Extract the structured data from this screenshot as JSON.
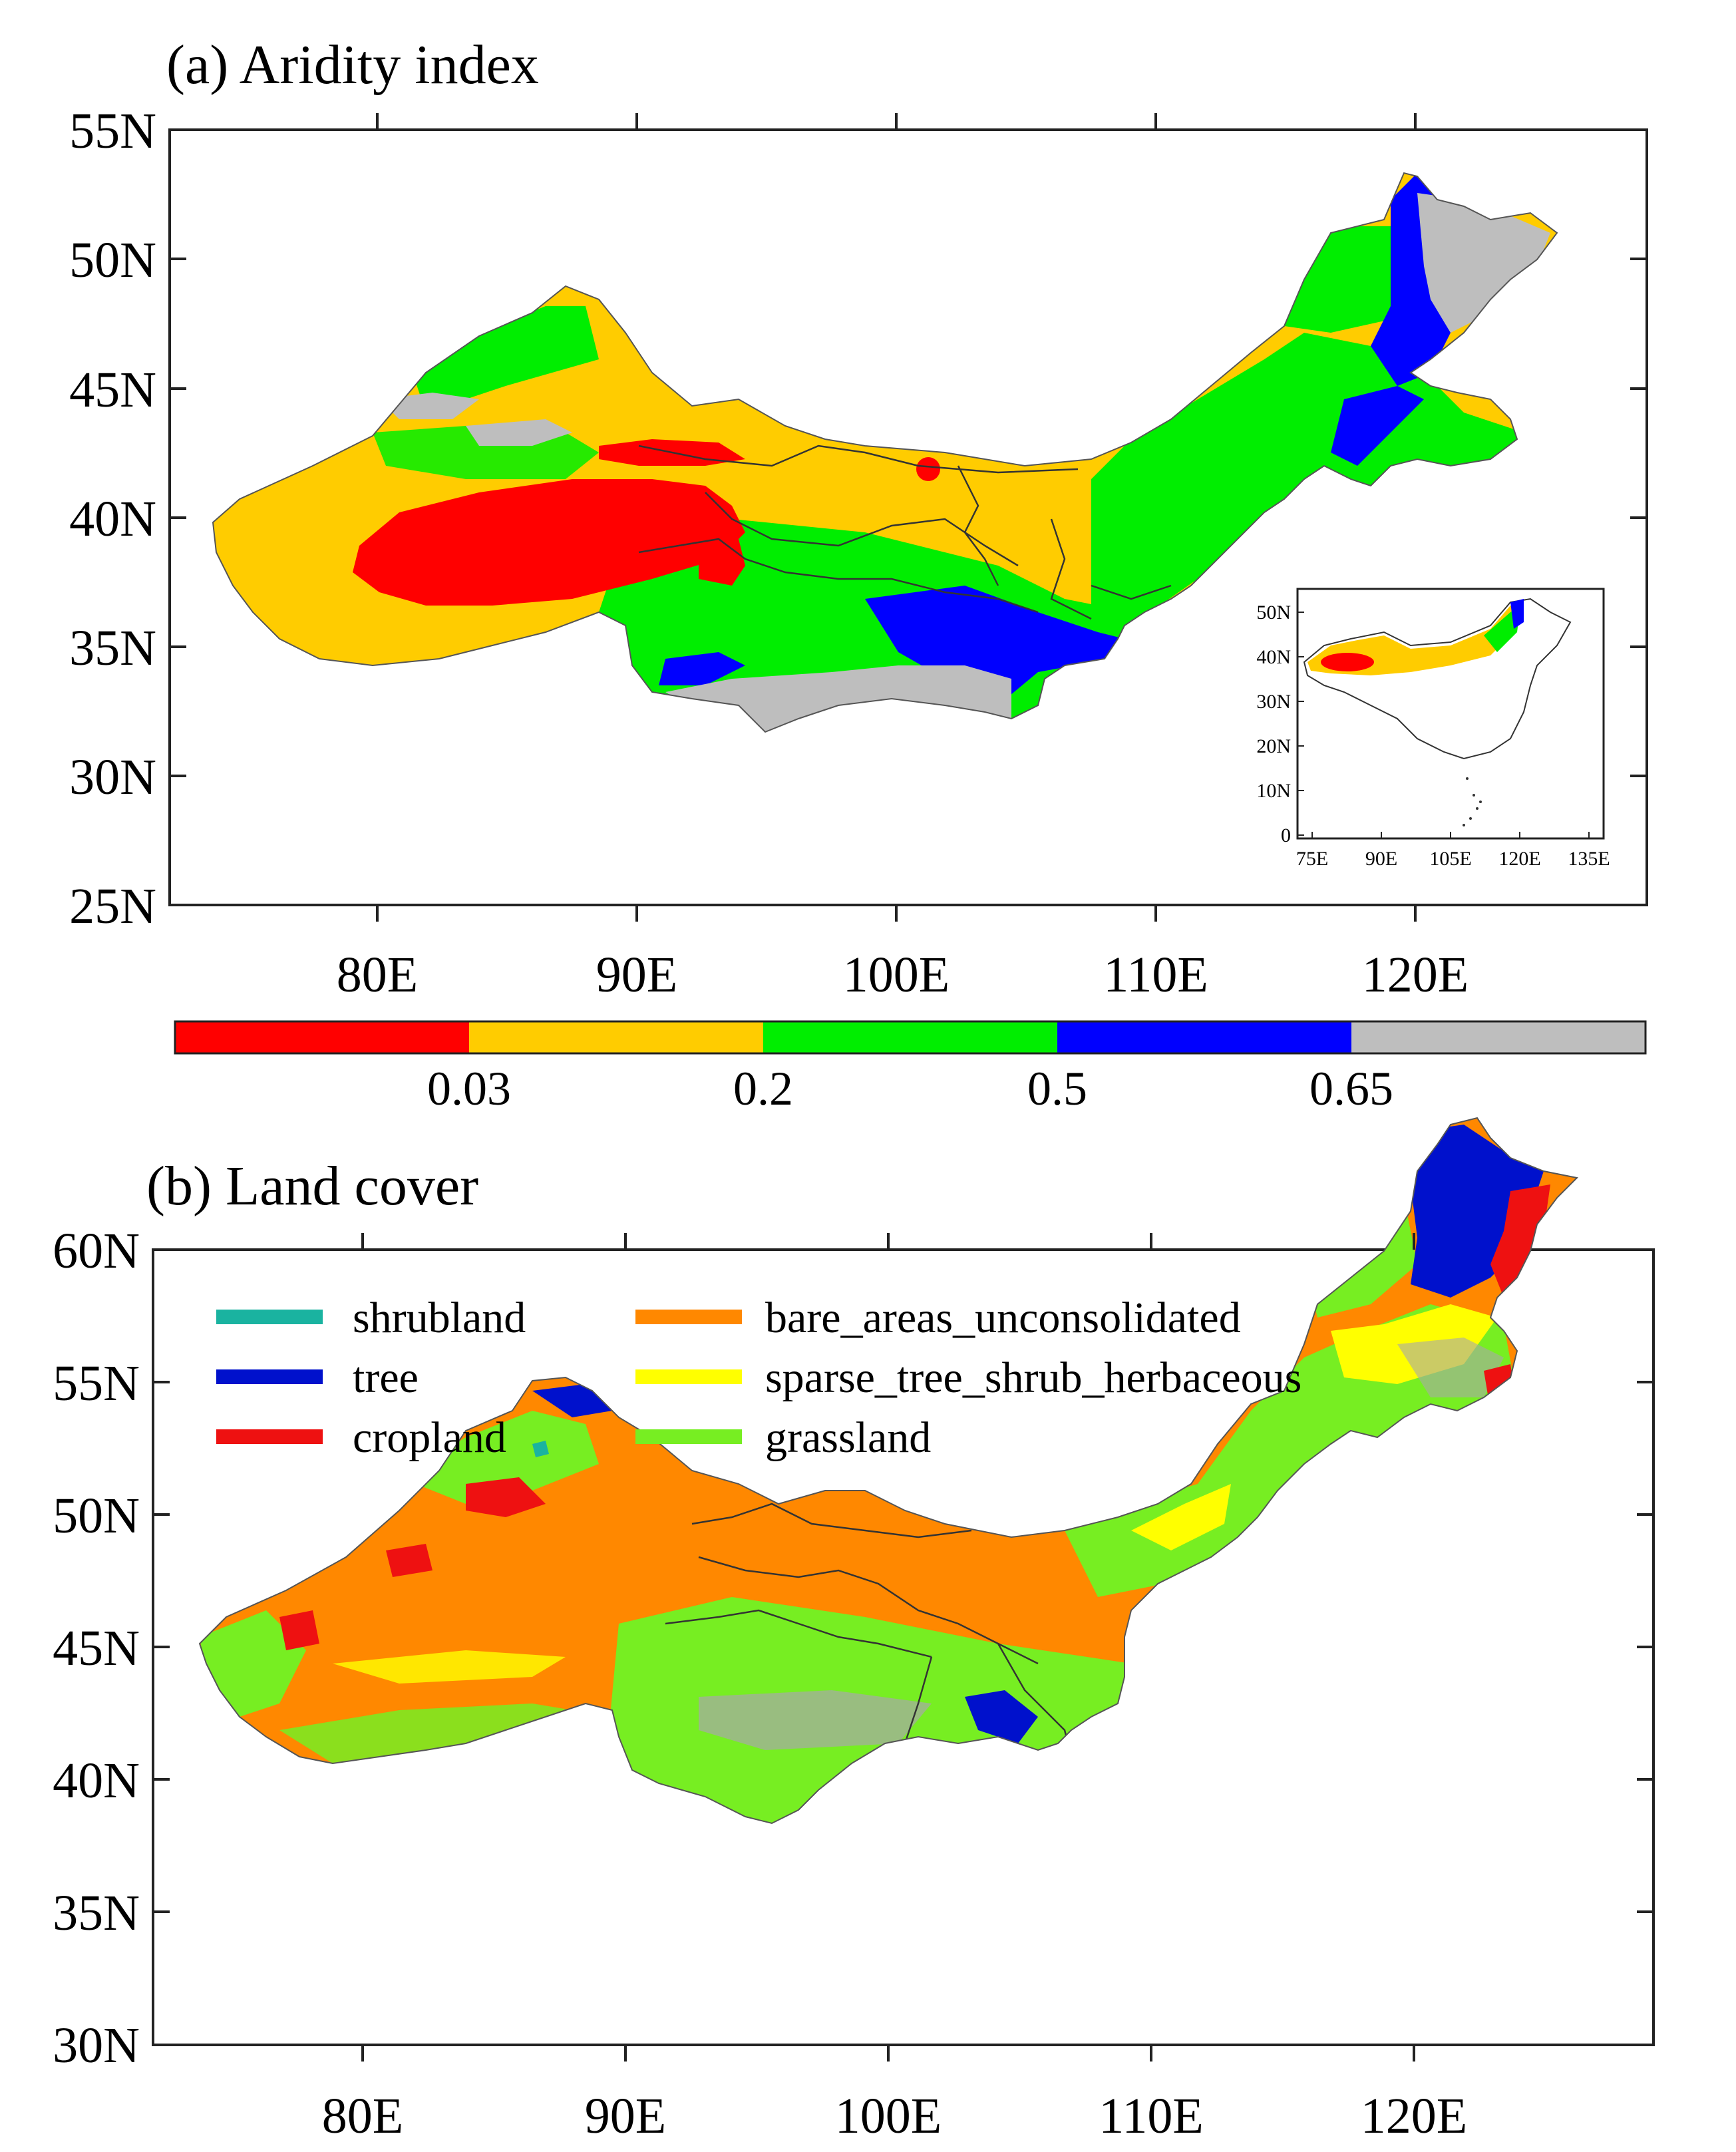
{
  "panel_a": {
    "title": "(a) Aridity index",
    "lat_labels": [
      "55N",
      "50N",
      "45N",
      "40N",
      "35N",
      "30N",
      "25N"
    ],
    "lon_labels": [
      "80E",
      "90E",
      "100E",
      "110E",
      "120E"
    ],
    "colorbar": {
      "colors": [
        "#ff0000",
        "#ffcc00",
        "#00ee00",
        "#0000ff",
        "#bebebe"
      ],
      "labels": [
        "0.03",
        "0.2",
        "0.5",
        "0.65"
      ]
    },
    "inset": {
      "lat_labels": [
        "50N",
        "40N",
        "30N",
        "20N",
        "10N",
        "0"
      ],
      "lon_labels": [
        "75E",
        "90E",
        "105E",
        "120E",
        "135E"
      ]
    }
  },
  "panel_b": {
    "title": "(b) Land cover",
    "lat_labels": [
      "60N",
      "55N",
      "50N",
      "45N",
      "40N",
      "35N",
      "30N"
    ],
    "lon_labels": [
      "80E",
      "90E",
      "100E",
      "110E",
      "120E"
    ],
    "legend": [
      {
        "label": "shrubland",
        "color": "#1ab3a0"
      },
      {
        "label": "tree",
        "color": "#0011cc"
      },
      {
        "label": "cropland",
        "color": "#ee1111"
      },
      {
        "label": "bare_areas_unconsolidated",
        "color": "#ff8800"
      },
      {
        "label": "sparse_tree_shrub_herbaceous",
        "color": "#ffff00"
      },
      {
        "label": "grassland",
        "color": "#77ee22"
      }
    ]
  }
}
